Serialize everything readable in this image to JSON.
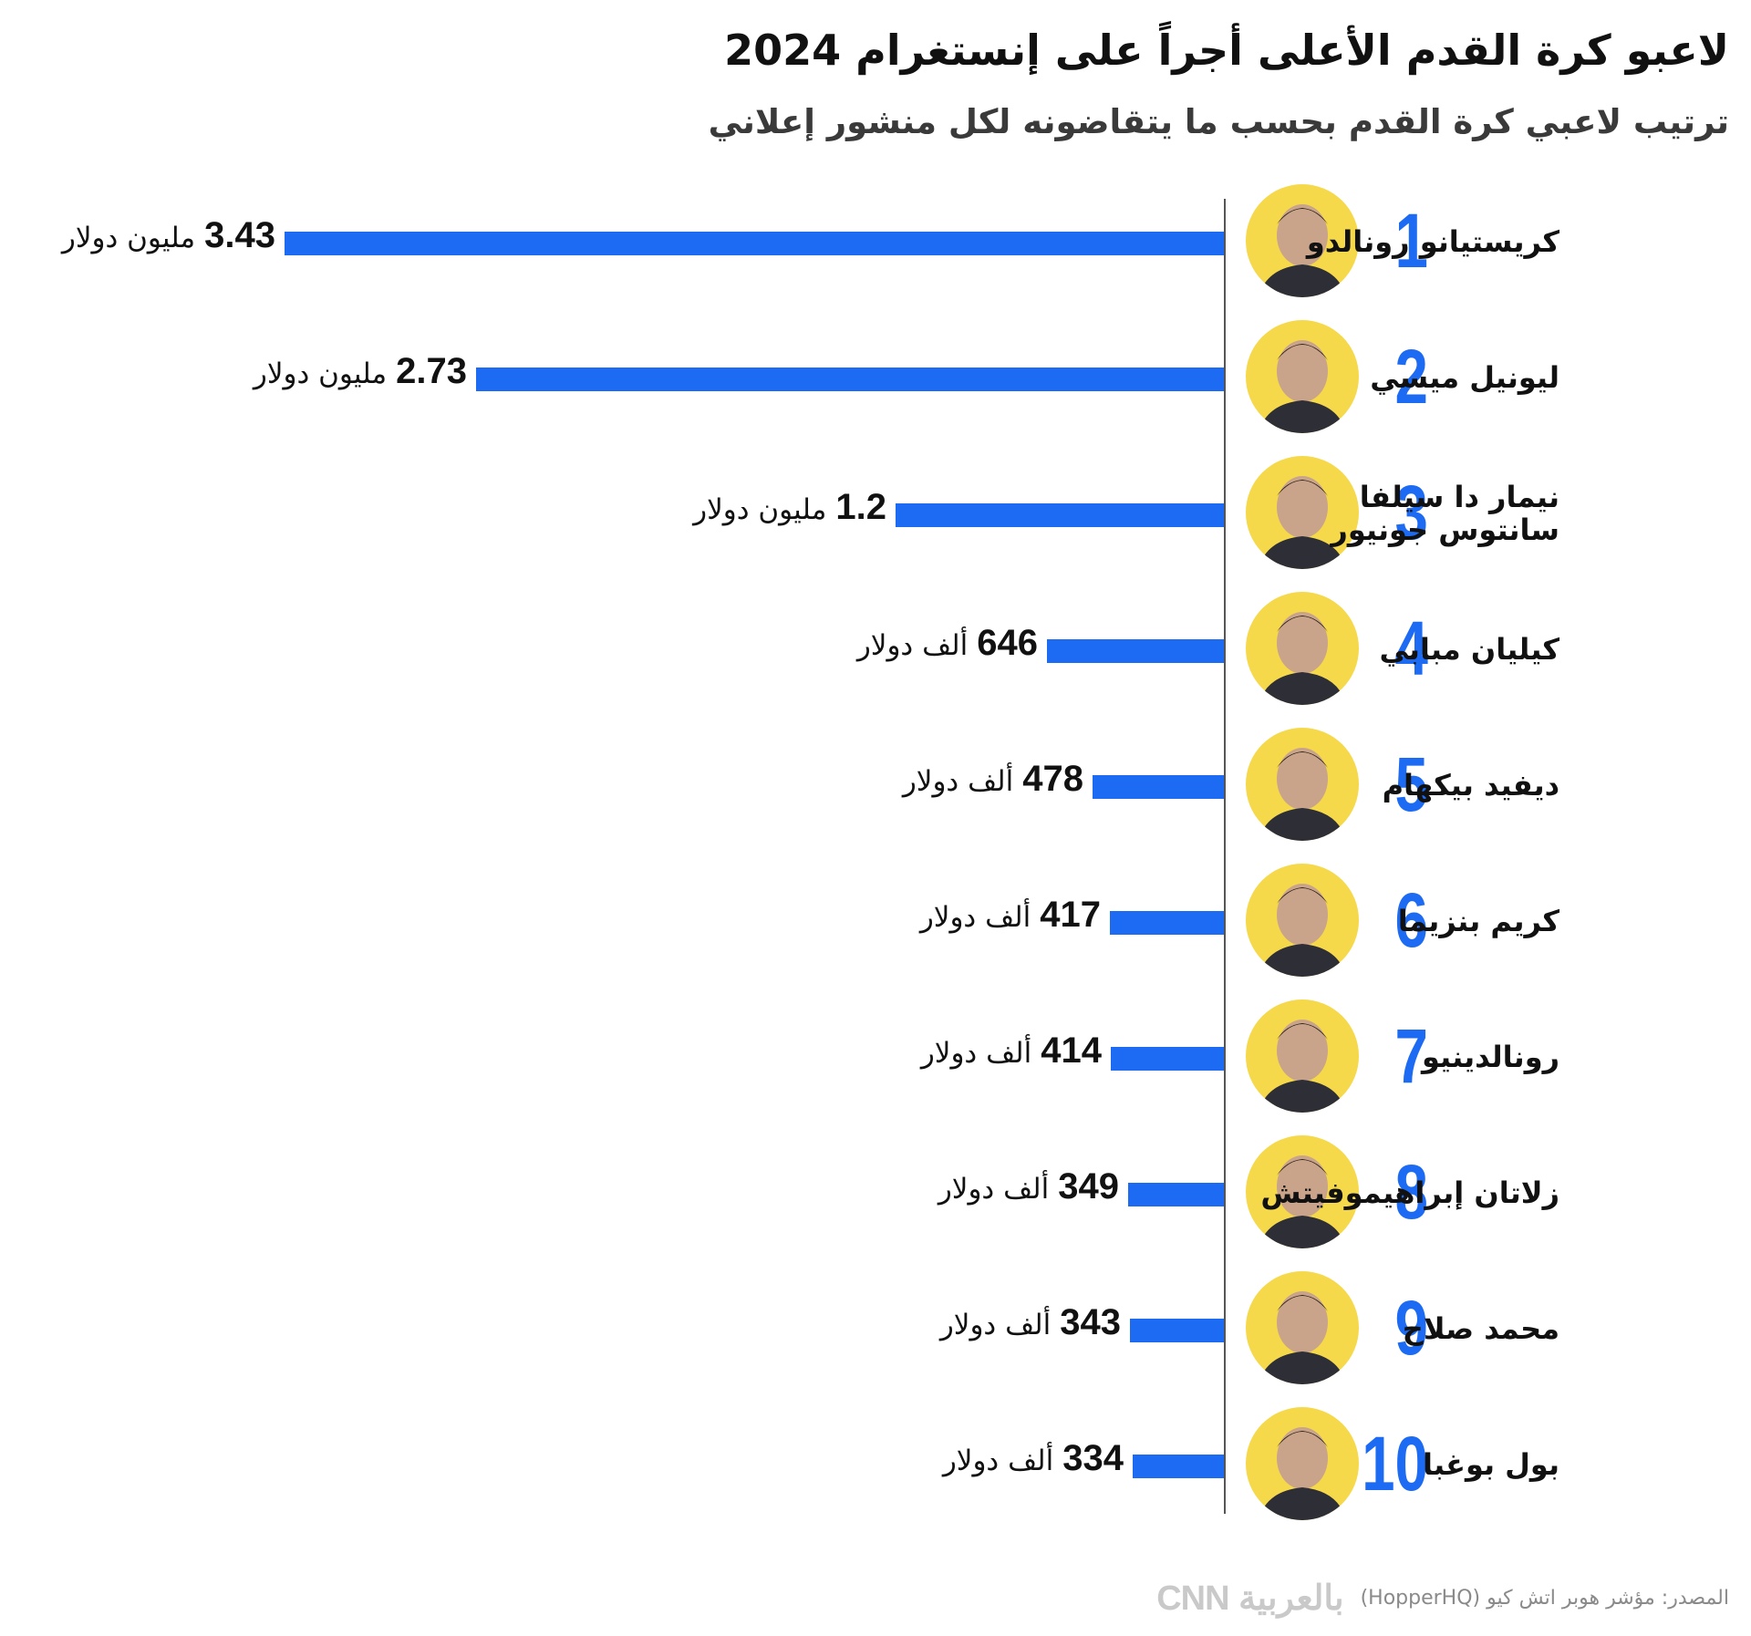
{
  "title": "لاعبو كرة القدم الأعلى أجراً على إنستغرام 2024",
  "subtitle": "ترتيب لاعبي كرة القدم بحسب ما يتقاضونه لكل منشور إعلاني",
  "source": "المصدر: مؤشر هوبر اتش كيو (HopperHQ)",
  "logo_text": "CNN بالعربية",
  "colors": {
    "bar": "#1d6bf2",
    "rank": "#1d6bf2",
    "photo_bg": "#f5d94a"
  },
  "chart_data": {
    "type": "bar",
    "orientation": "horizontal",
    "unit_note": "US dollars per sponsored post",
    "categories": [
      "كريستيانو رونالدو",
      "ليونيل ميسي",
      "نيمار دا سيلفا\nسانتوس جونيور",
      "كيليان مبابي",
      "ديفيد بيكهام",
      "كريم بنزيما",
      "رونالدينيو",
      "زلاتان إبراهيموفيتش",
      "محمد صلاح",
      "بول بوغبا"
    ],
    "ranks": [
      "1",
      "2",
      "3",
      "4",
      "5",
      "6",
      "7",
      "8",
      "9",
      "10"
    ],
    "values": [
      3430000,
      2730000,
      1200000,
      646000,
      478000,
      417000,
      414000,
      349000,
      343000,
      334000
    ],
    "value_labels": [
      {
        "num": "3.43",
        "unit": "مليون دولار"
      },
      {
        "num": "2.73",
        "unit": "مليون دولار"
      },
      {
        "num": "1.2",
        "unit": "مليون دولار"
      },
      {
        "num": "646",
        "unit": "ألف دولار"
      },
      {
        "num": "478",
        "unit": "ألف دولار"
      },
      {
        "num": "417",
        "unit": "ألف دولار"
      },
      {
        "num": "414",
        "unit": "ألف دولار"
      },
      {
        "num": "349",
        "unit": "ألف دولار"
      },
      {
        "num": "343",
        "unit": "ألف دولار"
      },
      {
        "num": "334",
        "unit": "ألف دولار"
      }
    ],
    "xlim": [
      0,
      3430000
    ],
    "grid": false,
    "legend": "none"
  }
}
